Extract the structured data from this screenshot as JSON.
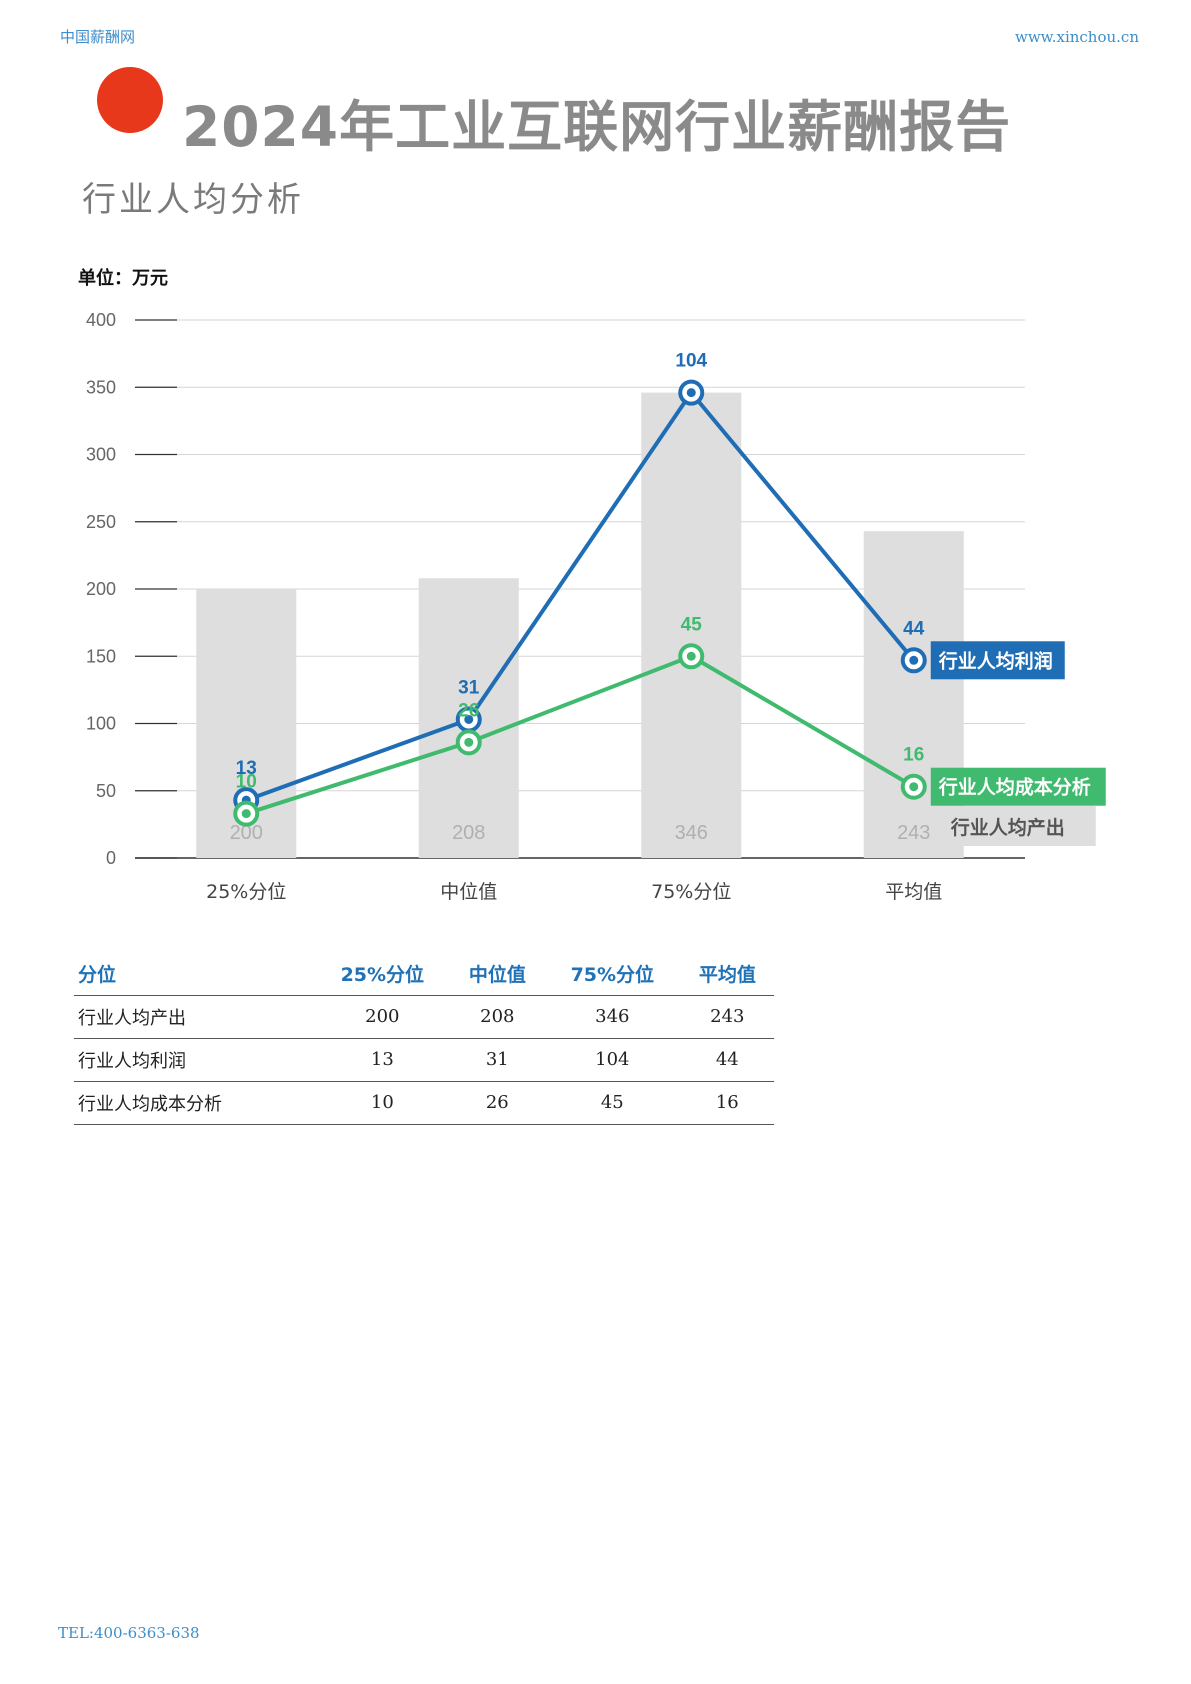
{
  "header": {
    "site_name": "中国薪酬网",
    "site_url": "www.xinchou.cn"
  },
  "title": "2024年工业互联网行业薪酬报告",
  "section_title": "行业人均分析",
  "unit_label": "单位：万元",
  "colors": {
    "accent_dot": "#e8381b",
    "profit": "#1f6db5",
    "cost": "#3fba6e",
    "output_bar": "#dedede"
  },
  "chart_data": {
    "type": "bar",
    "categories": [
      "25%分位",
      "中位值",
      "75%分位",
      "平均值"
    ],
    "ylim": [
      0,
      400
    ],
    "yticks": [
      0,
      50,
      100,
      150,
      200,
      250,
      300,
      350,
      400
    ],
    "bars": {
      "name": "行业人均产出",
      "values": [
        200,
        208,
        346,
        243
      ]
    },
    "lines": [
      {
        "name": "行业人均利润",
        "labels": [
          13,
          31,
          104,
          44
        ],
        "values": [
          43,
          103,
          346,
          147
        ]
      },
      {
        "name": "行业人均成本分析",
        "labels": [
          10,
          26,
          45,
          16
        ],
        "values": [
          33,
          86,
          150,
          53
        ]
      }
    ]
  },
  "table": {
    "headers": [
      "分位",
      "25%分位",
      "中位值",
      "75%分位",
      "平均值"
    ],
    "rows": [
      {
        "name": "行业人均产出",
        "values": [
          "200",
          "208",
          "346",
          "243"
        ]
      },
      {
        "name": "行业人均利润",
        "values": [
          "13",
          "31",
          "104",
          "44"
        ]
      },
      {
        "name": "行业人均成本分析",
        "values": [
          "10",
          "26",
          "45",
          "16"
        ]
      }
    ]
  },
  "footer": {
    "tel": "TEL:400-6363-638"
  }
}
